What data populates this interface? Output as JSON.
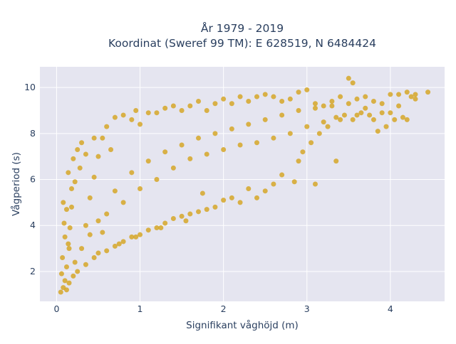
{
  "chart_data": {
    "type": "scatter",
    "title_lines": [
      "År 1979 - 2019",
      "Koordinat (Sweref 99 TM): E 628519, N 6484424"
    ],
    "xlabel": "Signifikant våghöjd (m)",
    "ylabel": "Vågperiod (s)",
    "xlim": [
      -0.2,
      4.65
    ],
    "ylim": [
      0.7,
      10.9
    ],
    "xticks": [
      0,
      1,
      2,
      3,
      4
    ],
    "yticks": [
      2,
      4,
      6,
      8,
      10
    ],
    "grid": true,
    "marker_color": "#d4a420",
    "plot_background": "#e5e5f0",
    "grid_color": "#ffffff",
    "series": [
      {
        "points": [
          [
            0.05,
            1.1
          ],
          [
            0.08,
            1.3
          ],
          [
            0.1,
            1.6
          ],
          [
            0.06,
            1.9
          ],
          [
            0.12,
            2.2
          ],
          [
            0.07,
            2.6
          ],
          [
            0.15,
            3.0
          ],
          [
            0.1,
            3.5
          ],
          [
            0.09,
            4.1
          ],
          [
            0.12,
            4.7
          ],
          [
            0.08,
            5.0
          ],
          [
            0.18,
            5.6
          ],
          [
            0.14,
            6.3
          ],
          [
            0.2,
            6.9
          ],
          [
            0.25,
            7.3
          ],
          [
            0.3,
            7.6
          ],
          [
            0.22,
            2.4
          ],
          [
            0.3,
            3.0
          ],
          [
            0.35,
            4.0
          ],
          [
            0.4,
            5.2
          ],
          [
            0.45,
            6.1
          ],
          [
            0.5,
            7.0
          ],
          [
            0.55,
            7.8
          ],
          [
            0.6,
            8.3
          ],
          [
            0.7,
            8.7
          ],
          [
            0.8,
            8.8
          ],
          [
            0.9,
            8.6
          ],
          [
            0.95,
            9.0
          ],
          [
            1.0,
            8.4
          ],
          [
            1.1,
            8.9
          ],
          [
            1.2,
            8.9
          ],
          [
            1.3,
            9.1
          ],
          [
            1.4,
            9.2
          ],
          [
            1.5,
            9.0
          ],
          [
            1.6,
            9.2
          ],
          [
            1.7,
            9.4
          ],
          [
            1.8,
            9.0
          ],
          [
            1.9,
            9.3
          ],
          [
            2.0,
            9.5
          ],
          [
            2.1,
            9.3
          ],
          [
            2.2,
            9.6
          ],
          [
            2.3,
            9.4
          ],
          [
            2.4,
            9.6
          ],
          [
            2.5,
            9.7
          ],
          [
            2.6,
            9.6
          ],
          [
            2.7,
            9.4
          ],
          [
            2.8,
            9.5
          ],
          [
            2.9,
            9.8
          ],
          [
            3.0,
            9.9
          ],
          [
            3.1,
            9.3
          ],
          [
            3.2,
            9.2
          ],
          [
            3.3,
            9.4
          ],
          [
            3.4,
            9.6
          ],
          [
            3.5,
            10.4
          ],
          [
            3.55,
            10.2
          ],
          [
            3.6,
            9.5
          ],
          [
            3.7,
            9.6
          ],
          [
            3.8,
            9.4
          ],
          [
            3.9,
            9.3
          ],
          [
            4.0,
            9.7
          ],
          [
            4.1,
            9.7
          ],
          [
            4.2,
            9.8
          ],
          [
            4.3,
            9.7
          ],
          [
            4.45,
            9.8
          ],
          [
            4.25,
            9.6
          ],
          [
            3.85,
            8.1
          ],
          [
            3.95,
            8.3
          ],
          [
            4.05,
            8.6
          ],
          [
            4.15,
            8.7
          ],
          [
            3.75,
            8.8
          ],
          [
            3.65,
            8.9
          ],
          [
            3.45,
            8.8
          ],
          [
            3.35,
            8.7
          ],
          [
            3.25,
            8.3
          ],
          [
            3.15,
            8.0
          ],
          [
            3.05,
            7.6
          ],
          [
            2.95,
            7.2
          ],
          [
            2.9,
            6.8
          ],
          [
            3.1,
            5.8
          ],
          [
            2.7,
            6.2
          ],
          [
            2.6,
            5.8
          ],
          [
            2.5,
            5.5
          ],
          [
            2.4,
            5.2
          ],
          [
            2.3,
            5.6
          ],
          [
            2.2,
            5.0
          ],
          [
            2.1,
            5.2
          ],
          [
            2.0,
            5.1
          ],
          [
            1.9,
            4.8
          ],
          [
            1.8,
            4.7
          ],
          [
            1.7,
            4.6
          ],
          [
            1.6,
            4.5
          ],
          [
            1.5,
            4.4
          ],
          [
            1.4,
            4.3
          ],
          [
            1.3,
            4.1
          ],
          [
            1.2,
            3.9
          ],
          [
            1.1,
            3.8
          ],
          [
            1.0,
            3.6
          ],
          [
            0.9,
            3.5
          ],
          [
            0.8,
            3.3
          ],
          [
            0.7,
            3.1
          ],
          [
            0.6,
            2.9
          ],
          [
            0.5,
            2.8
          ],
          [
            0.45,
            2.6
          ],
          [
            0.35,
            2.3
          ],
          [
            0.25,
            2.0
          ],
          [
            0.2,
            1.8
          ],
          [
            0.15,
            1.5
          ],
          [
            0.12,
            1.2
          ],
          [
            0.6,
            4.5
          ],
          [
            0.8,
            5.0
          ],
          [
            1.0,
            5.6
          ],
          [
            1.2,
            6.0
          ],
          [
            1.4,
            6.5
          ],
          [
            1.6,
            6.9
          ],
          [
            1.8,
            7.1
          ],
          [
            2.0,
            7.3
          ],
          [
            2.2,
            7.5
          ],
          [
            2.4,
            7.6
          ],
          [
            2.6,
            7.8
          ],
          [
            2.8,
            8.0
          ],
          [
            3.0,
            8.3
          ],
          [
            3.2,
            8.5
          ],
          [
            3.4,
            8.6
          ],
          [
            3.6,
            8.8
          ],
          [
            0.4,
            3.6
          ],
          [
            0.5,
            4.2
          ],
          [
            0.7,
            5.5
          ],
          [
            0.9,
            6.3
          ],
          [
            1.1,
            6.8
          ],
          [
            1.3,
            7.2
          ],
          [
            1.5,
            7.5
          ],
          [
            1.7,
            7.8
          ],
          [
            1.9,
            8.0
          ],
          [
            2.1,
            8.2
          ],
          [
            2.3,
            8.4
          ],
          [
            2.5,
            8.6
          ],
          [
            2.7,
            8.8
          ],
          [
            2.9,
            9.0
          ],
          [
            3.1,
            9.1
          ],
          [
            3.3,
            9.2
          ],
          [
            3.5,
            9.3
          ],
          [
            3.7,
            9.1
          ],
          [
            3.9,
            8.9
          ],
          [
            4.1,
            9.2
          ],
          [
            4.3,
            9.5
          ],
          [
            3.55,
            8.6
          ],
          [
            3.8,
            8.6
          ],
          [
            4.0,
            8.9
          ],
          [
            4.2,
            8.6
          ],
          [
            3.35,
            6.8
          ],
          [
            2.85,
            5.9
          ],
          [
            1.75,
            5.4
          ],
          [
            1.55,
            4.2
          ],
          [
            1.25,
            3.9
          ],
          [
            0.95,
            3.5
          ],
          [
            0.75,
            3.2
          ],
          [
            0.55,
            3.7
          ],
          [
            0.65,
            7.3
          ],
          [
            0.45,
            7.8
          ],
          [
            0.35,
            7.1
          ],
          [
            0.28,
            6.5
          ],
          [
            0.22,
            5.9
          ],
          [
            0.18,
            4.8
          ],
          [
            0.16,
            3.9
          ],
          [
            0.14,
            3.2
          ]
        ]
      }
    ]
  }
}
